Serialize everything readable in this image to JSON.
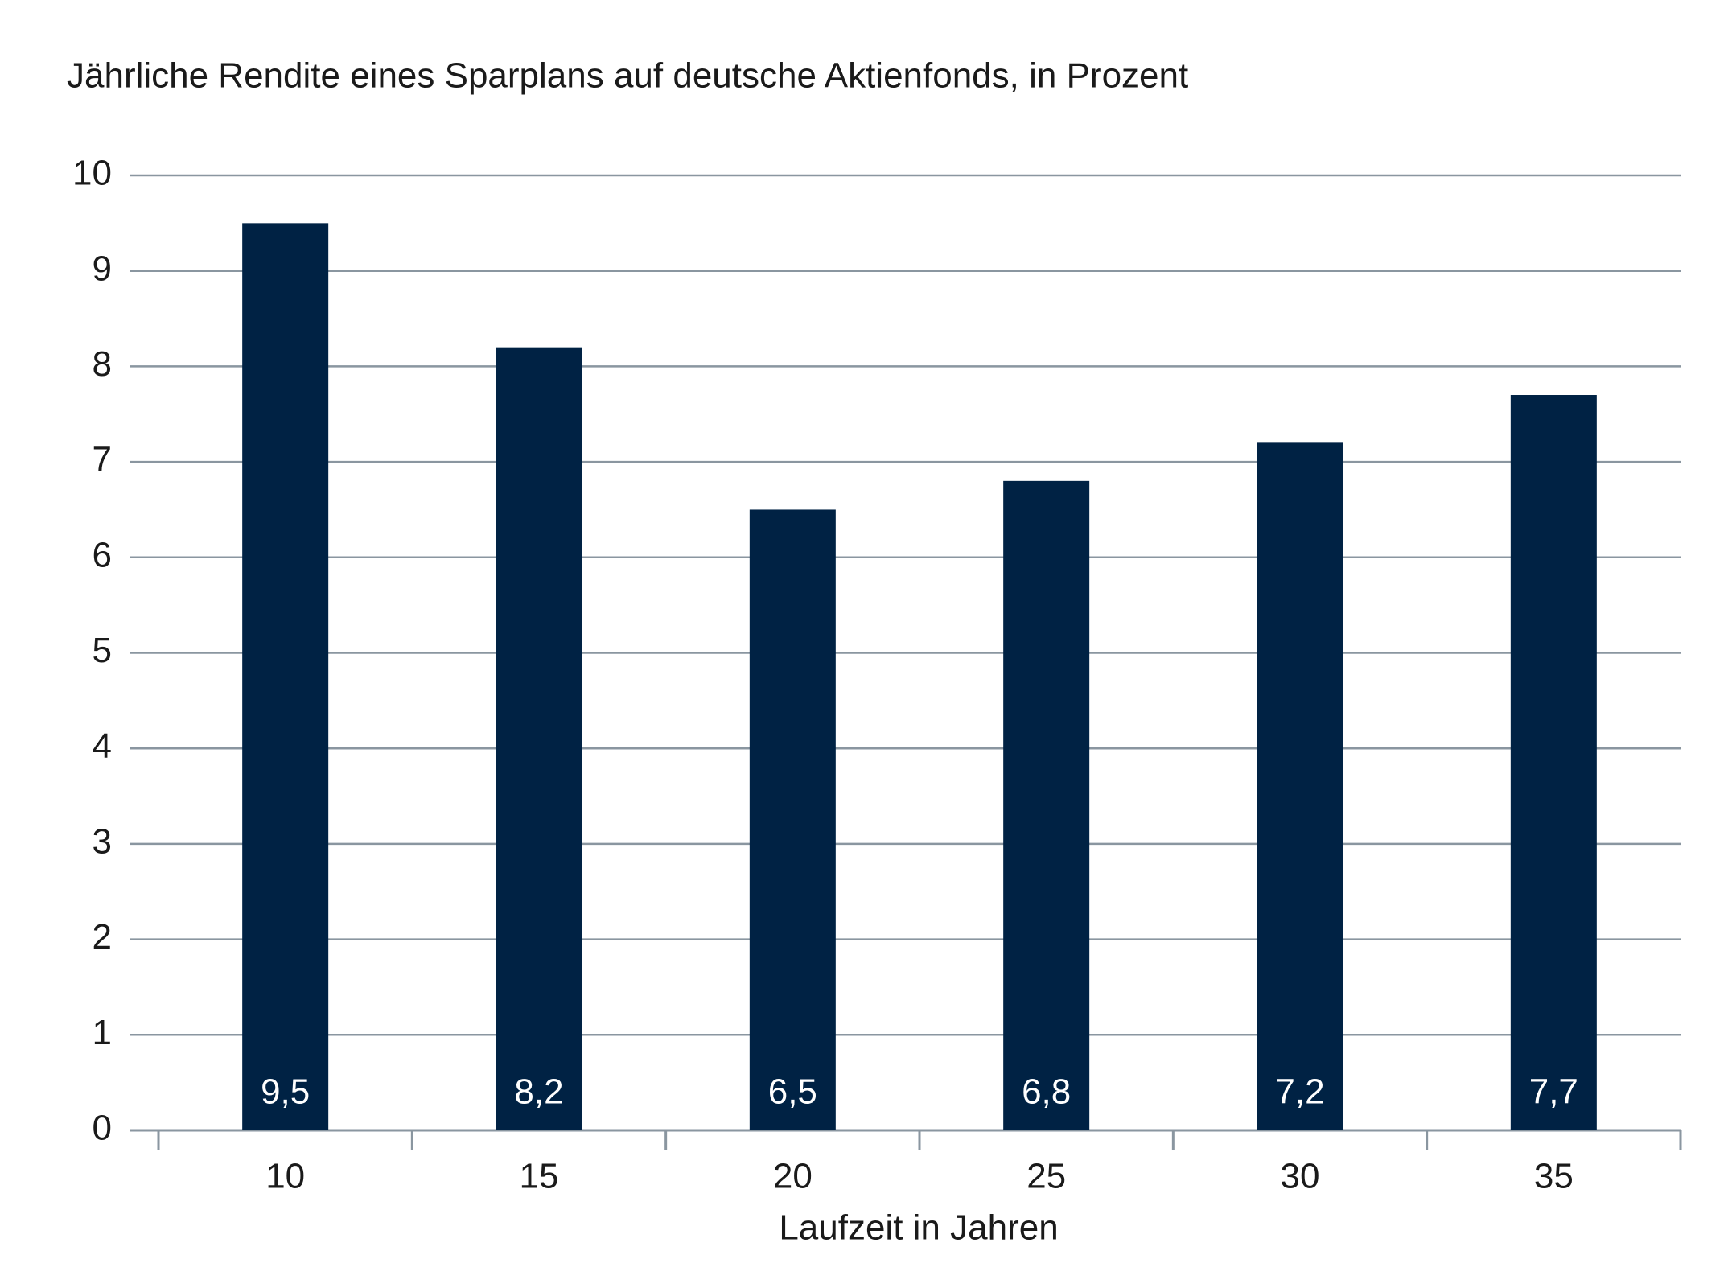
{
  "chart_data": {
    "type": "bar",
    "title": "Jährliche Rendite eines Sparplans auf deutsche Aktienfonds, in Prozent",
    "x_label": "Laufzeit in Jahren",
    "categories": [
      "10",
      "15",
      "20",
      "25",
      "30",
      "35"
    ],
    "values": [
      9.5,
      8.2,
      6.5,
      6.8,
      7.2,
      7.7
    ],
    "value_labels": [
      "9,5",
      "8,2",
      "6,5",
      "6,8",
      "7,2",
      "7,7"
    ],
    "color": "#002244",
    "ylim": [
      0,
      10
    ],
    "yticks": [
      0,
      1,
      2,
      3,
      4,
      5,
      6,
      7,
      8,
      9,
      10
    ],
    "grid": true
  }
}
